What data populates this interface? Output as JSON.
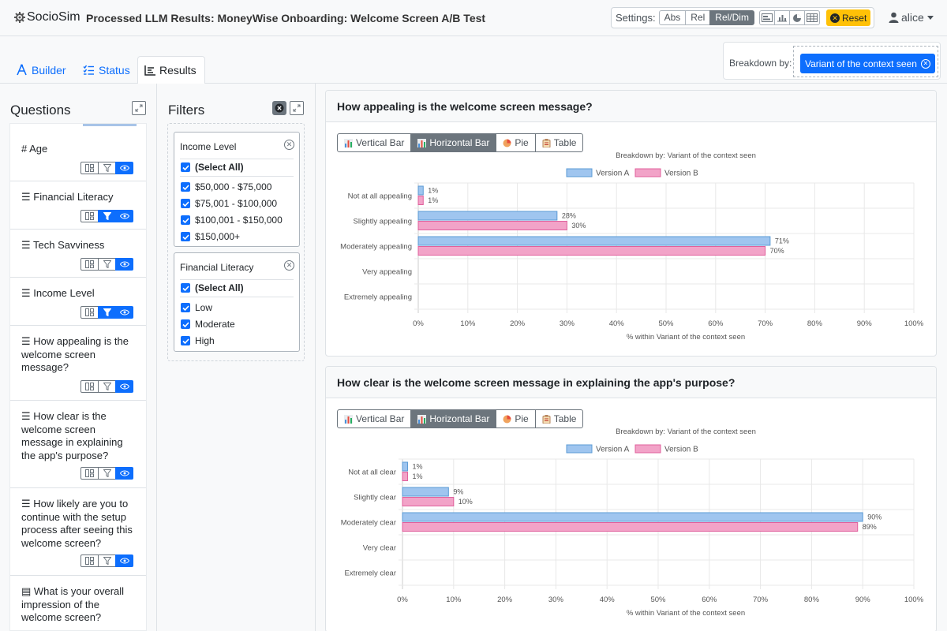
{
  "app": {
    "brand": "SocioSim",
    "title": "Processed LLM Results: MoneyWise Onboarding: Welcome Screen A/B Test"
  },
  "settings": {
    "label": "Settings:",
    "modes": [
      "Abs",
      "Rel",
      "Rel/Dim"
    ],
    "active_mode": "Rel/Dim",
    "chart_icons": [
      "horizontal-bar-icon",
      "vertical-bar-icon",
      "pie-icon",
      "table-icon"
    ],
    "reset": "Reset"
  },
  "user": {
    "name": "alice"
  },
  "tabs": [
    {
      "label": "Builder"
    },
    {
      "label": "Status"
    },
    {
      "label": "Results"
    }
  ],
  "breakdown": {
    "label": "Breakdown by:",
    "value": "Variant of the context seen"
  },
  "questions": {
    "title": "Questions",
    "items": [
      {
        "label": "Age",
        "type": "numeric",
        "filtered": false
      },
      {
        "label": "Financial Literacy",
        "type": "list",
        "filtered": true
      },
      {
        "label": "Tech Savviness",
        "type": "list",
        "filtered": false
      },
      {
        "label": "Income Level",
        "type": "list",
        "filtered": true
      },
      {
        "label": "How appealing is the welcome screen message?",
        "type": "list",
        "filtered": false
      },
      {
        "label": "How clear is the welcome screen message in explaining the app's purpose?",
        "type": "list",
        "filtered": false
      },
      {
        "label": "How likely are you to continue with the setup process after seeing this welcome screen?",
        "type": "list",
        "filtered": false
      },
      {
        "label": "What is your overall impression of the welcome screen?",
        "type": "text",
        "filtered": false
      }
    ]
  },
  "filters": {
    "title": "Filters",
    "groups": [
      {
        "name": "Income Level",
        "options": [
          "(Select All)",
          "$50,000 - $75,000",
          "$75,001 - $100,000",
          "$100,001 - $150,000",
          "$150,000+"
        ]
      },
      {
        "name": "Financial Literacy",
        "options": [
          "(Select All)",
          "Low",
          "Moderate",
          "High"
        ]
      }
    ]
  },
  "chart_types": [
    "Vertical Bar",
    "Horizontal Bar",
    "Pie",
    "Table"
  ],
  "active_chart_type": "Horizontal Bar",
  "colors": {
    "version_a": "#9fc5ef",
    "version_a_border": "#5b9bd5",
    "version_b": "#f2a3c8",
    "version_b_border": "#e0609c",
    "primary": "#0d6efd"
  },
  "chart_data": [
    {
      "type": "bar",
      "orientation": "horizontal",
      "title": "How appealing is the welcome screen message?",
      "subtitle": "Breakdown by: Variant of the context seen",
      "categories": [
        "Not at all appealing",
        "Slightly appealing",
        "Moderately appealing",
        "Very appealing",
        "Extremely appealing"
      ],
      "series": [
        {
          "name": "Version A",
          "values": [
            1,
            28,
            71,
            0,
            0
          ]
        },
        {
          "name": "Version B",
          "values": [
            1,
            30,
            70,
            0,
            0
          ]
        }
      ],
      "xlabel": "% within Variant of the context seen",
      "xlim": [
        0,
        100
      ],
      "ticks": [
        "0%",
        "10%",
        "20%",
        "30%",
        "40%",
        "50%",
        "60%",
        "70%",
        "80%",
        "90%",
        "100%"
      ],
      "legend": "top"
    },
    {
      "type": "bar",
      "orientation": "horizontal",
      "title": "How clear is the welcome screen message in explaining the app's purpose?",
      "subtitle": "Breakdown by: Variant of the context seen",
      "categories": [
        "Not at all clear",
        "Slightly clear",
        "Moderately clear",
        "Very clear",
        "Extremely clear"
      ],
      "series": [
        {
          "name": "Version A",
          "values": [
            1,
            9,
            90,
            0,
            0
          ]
        },
        {
          "name": "Version B",
          "values": [
            1,
            10,
            89,
            0,
            0
          ]
        }
      ],
      "xlabel": "% within Variant of the context seen",
      "xlim": [
        0,
        100
      ],
      "ticks": [
        "0%",
        "10%",
        "20%",
        "30%",
        "40%",
        "50%",
        "60%",
        "70%",
        "80%",
        "90%",
        "100%"
      ],
      "legend": "top"
    }
  ]
}
